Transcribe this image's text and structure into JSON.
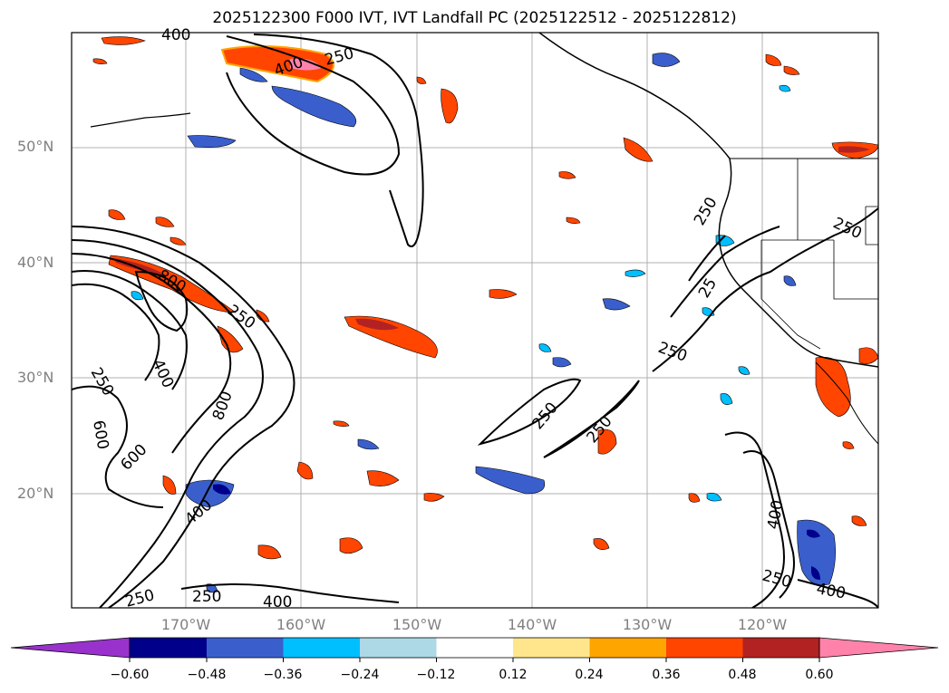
{
  "title": "2025122300 F000 IVT, IVT Landfall PC (2025122512 - 2025122812)",
  "lat_labels": [
    "50°N",
    "40°N",
    "30°N",
    "20°N"
  ],
  "lon_labels": [
    "170°W",
    "160°W",
    "150°W",
    "140°W",
    "130°W",
    "120°W"
  ],
  "contour_labels": [
    "400",
    "400",
    "250",
    "800",
    "250",
    "250",
    "400",
    "800",
    "600",
    "600",
    "400",
    "250",
    "250",
    "400",
    "250",
    "250",
    "250",
    "250",
    "25",
    "250",
    "400",
    "250",
    "400",
    "250"
  ],
  "colorbar": {
    "ticks": [
      "−0.60",
      "−0.48",
      "−0.36",
      "−0.24",
      "−0.12",
      "0.12",
      "0.24",
      "0.36",
      "0.48",
      "0.60"
    ],
    "colors": [
      "#9932cc",
      "#00008b",
      "#3a5fcd",
      "#00bfff",
      "#add8e6",
      "#ffffff",
      "#ffe68c",
      "#ffa500",
      "#ff4500",
      "#b22222",
      "#ff82ab"
    ]
  }
}
